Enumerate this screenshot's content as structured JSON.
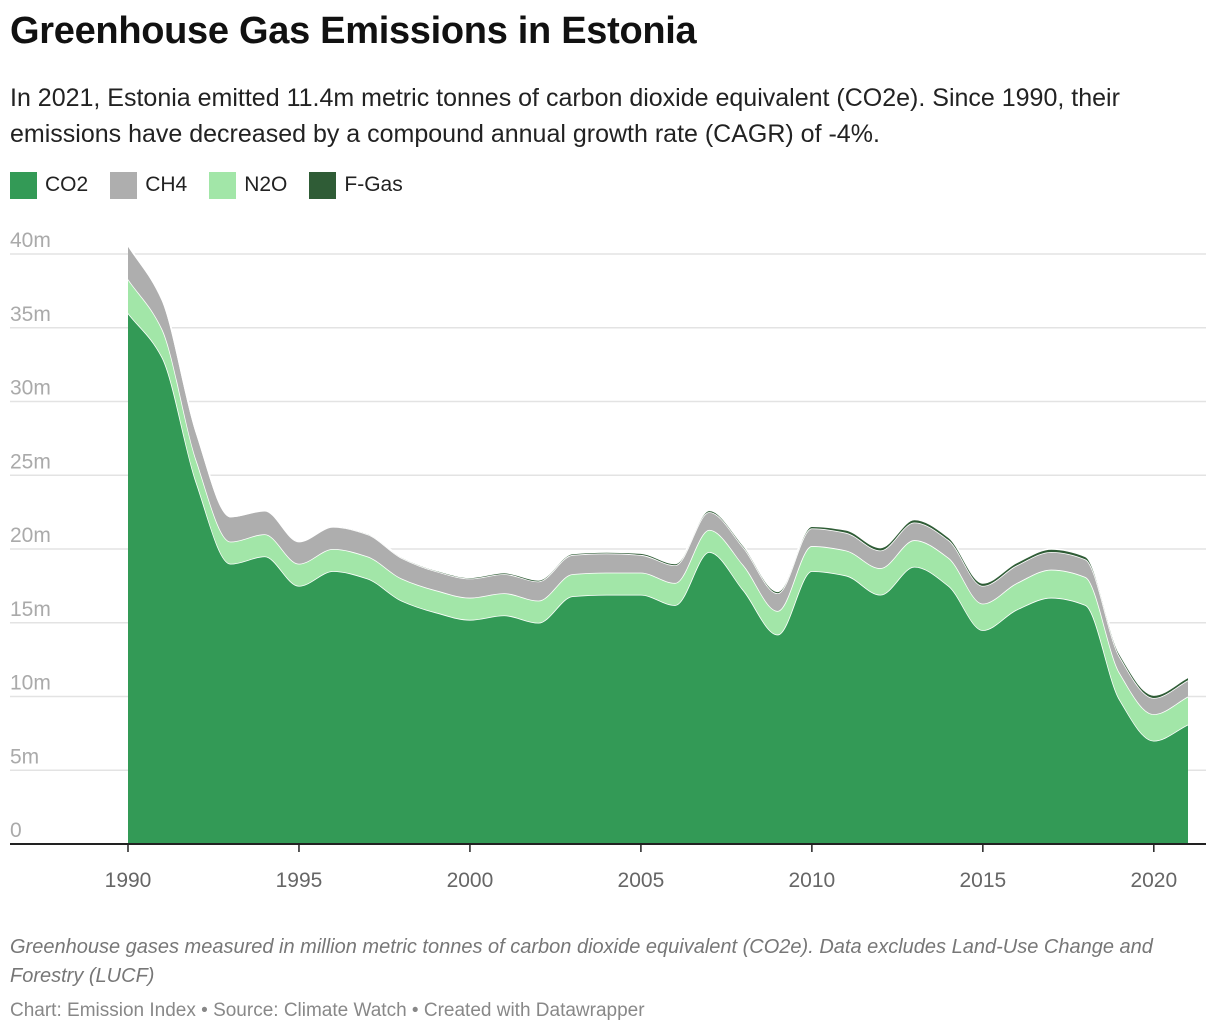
{
  "title": "Greenhouse Gas Emissions in Estonia",
  "subtitle": "In 2021, Estonia emitted 11.4m metric tonnes of carbon dioxide equivalent (CO2e). Since 1990, their emissions have decreased by a compound annual growth rate (CAGR) of -4%.",
  "note": "Greenhouse gases measured in million metric tonnes of carbon dioxide equivalent (CO2e). Data excludes Land-Use Change and Forestry (LUCF)",
  "credits": "Chart: Emission Index • Source: Climate Watch • Created with Datawrapper",
  "colors": {
    "co2": "#339a56",
    "ch4": "#aeaeae",
    "n2o": "#a2e6a8",
    "fgas": "#2f5c36",
    "grid": "#e3e3e3",
    "axis": "#222222",
    "ytick": "#aaaaaa",
    "xtick": "#666666"
  },
  "chart_data": {
    "type": "area",
    "stacked": true,
    "x": [
      1990,
      1991,
      1992,
      1993,
      1994,
      1995,
      1996,
      1997,
      1998,
      1999,
      2000,
      2001,
      2002,
      2003,
      2004,
      2005,
      2006,
      2007,
      2008,
      2009,
      2010,
      2011,
      2012,
      2013,
      2014,
      2015,
      2016,
      2017,
      2018,
      2019,
      2020,
      2021
    ],
    "series": [
      {
        "name": "CO2",
        "color": "#339a56",
        "values": [
          36.0,
          33.0,
          24.5,
          19.0,
          19.5,
          17.5,
          18.5,
          18.0,
          16.5,
          15.7,
          15.2,
          15.5,
          15.0,
          16.8,
          16.9,
          16.9,
          16.2,
          19.8,
          17.2,
          14.2,
          18.5,
          18.2,
          16.9,
          18.8,
          17.5,
          14.5,
          15.9,
          16.7,
          16.2,
          9.8,
          7.0,
          8.1
        ]
      },
      {
        "name": "CH4",
        "color": "#aeaeae",
        "values": [
          2.3,
          2.0,
          1.9,
          1.7,
          1.6,
          1.5,
          1.5,
          1.5,
          1.4,
          1.3,
          1.3,
          1.3,
          1.3,
          1.3,
          1.3,
          1.2,
          1.2,
          1.2,
          1.2,
          1.2,
          1.2,
          1.2,
          1.2,
          1.2,
          1.2,
          1.2,
          1.2,
          1.2,
          1.2,
          1.1,
          1.1,
          1.1
        ]
      },
      {
        "name": "N2O",
        "color": "#a2e6a8",
        "values": [
          2.3,
          1.9,
          1.5,
          1.5,
          1.5,
          1.5,
          1.5,
          1.5,
          1.5,
          1.5,
          1.5,
          1.5,
          1.5,
          1.5,
          1.5,
          1.5,
          1.5,
          1.5,
          1.7,
          1.6,
          1.7,
          1.7,
          1.8,
          1.8,
          1.9,
          1.8,
          1.8,
          1.9,
          1.9,
          1.8,
          1.8,
          1.9
        ]
      },
      {
        "name": "F-Gas",
        "color": "#2f5c36",
        "values": [
          0.0,
          0.0,
          0.0,
          0.0,
          0.02,
          0.03,
          0.04,
          0.05,
          0.06,
          0.07,
          0.08,
          0.1,
          0.1,
          0.1,
          0.1,
          0.12,
          0.12,
          0.12,
          0.13,
          0.13,
          0.15,
          0.2,
          0.2,
          0.2,
          0.2,
          0.2,
          0.2,
          0.2,
          0.2,
          0.2,
          0.2,
          0.2
        ]
      }
    ],
    "stack_order": [
      "CO2",
      "N2O",
      "CH4",
      "F-Gas"
    ],
    "ylim": [
      0,
      40
    ],
    "yticks": [
      0,
      5,
      10,
      15,
      20,
      25,
      30,
      35,
      40
    ],
    "ytick_labels": [
      "0",
      "5m",
      "10m",
      "15m",
      "20m",
      "25m",
      "30m",
      "35m",
      "40m"
    ],
    "xticks": [
      1990,
      1995,
      2000,
      2005,
      2010,
      2015,
      2020
    ],
    "xtick_labels": [
      "1990",
      "1995",
      "2000",
      "2005",
      "2010",
      "2015",
      "2020"
    ],
    "grid": true,
    "legend_position": "top-left"
  }
}
